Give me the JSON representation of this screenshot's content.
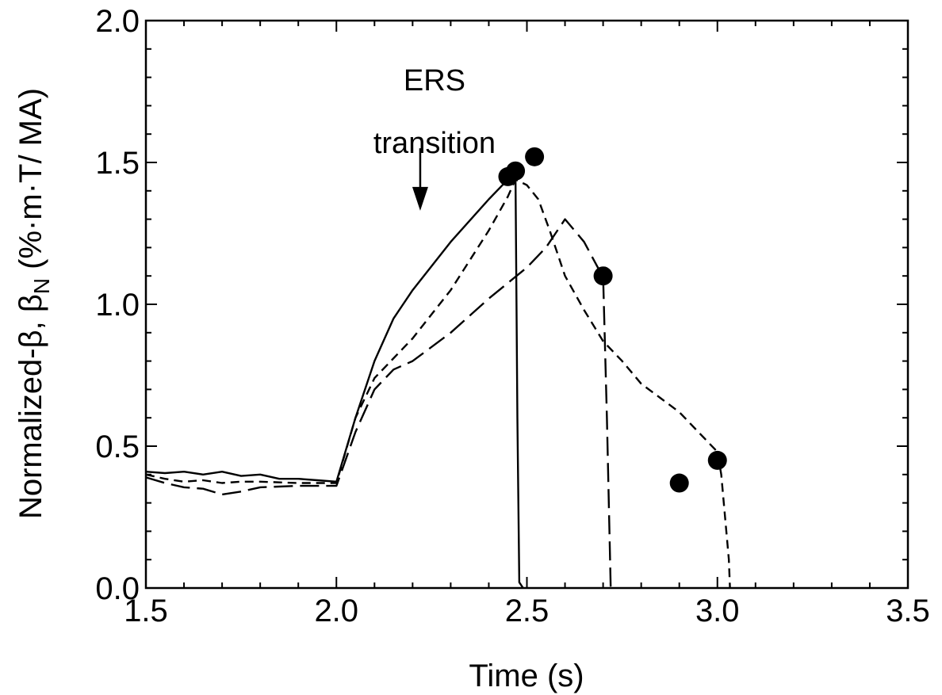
{
  "chart_data": {
    "type": "line",
    "xlabel": "Time (s)",
    "ylabel_main": "Normalized-β, β",
    "ylabel_sub": "N",
    "ylabel_tail": " (%·m·T/ MA)",
    "xlim": [
      1.5,
      3.5
    ],
    "ylim": [
      0.0,
      2.0
    ],
    "x_ticks": [
      1.5,
      2.0,
      2.5,
      3.0,
      3.5
    ],
    "x_tick_labels": [
      "1.5",
      "2.0",
      "2.5",
      "3.0",
      "3.5"
    ],
    "y_ticks": [
      0.0,
      0.5,
      1.0,
      1.5,
      2.0
    ],
    "y_tick_labels": [
      "0.0",
      "0.5",
      "1.0",
      "1.5",
      "2.0"
    ],
    "x_minor_step": 0.1,
    "y_minor_step": 0.1,
    "annotation": {
      "lines": [
        "ERS",
        "transition"
      ],
      "x": 2.22,
      "arrow_from_y": 1.55,
      "arrow_to_y": 1.33
    },
    "series": [
      {
        "style": "solid",
        "points": [
          [
            1.5,
            0.41
          ],
          [
            1.55,
            0.405
          ],
          [
            1.6,
            0.41
          ],
          [
            1.65,
            0.4
          ],
          [
            1.7,
            0.41
          ],
          [
            1.75,
            0.395
          ],
          [
            1.8,
            0.4
          ],
          [
            1.85,
            0.385
          ],
          [
            1.9,
            0.385
          ],
          [
            1.95,
            0.38
          ],
          [
            2.0,
            0.375
          ],
          [
            2.05,
            0.6
          ],
          [
            2.1,
            0.8
          ],
          [
            2.15,
            0.95
          ],
          [
            2.2,
            1.05
          ],
          [
            2.3,
            1.22
          ],
          [
            2.4,
            1.37
          ],
          [
            2.45,
            1.44
          ],
          [
            2.47,
            1.46
          ],
          [
            2.475,
            0.6
          ],
          [
            2.48,
            0.02
          ],
          [
            2.49,
            0.0
          ]
        ],
        "markers": [
          [
            2.45,
            1.45
          ],
          [
            2.47,
            1.47
          ],
          [
            2.52,
            1.52
          ]
        ]
      },
      {
        "style": "dashed",
        "points": [
          [
            1.5,
            0.4
          ],
          [
            1.55,
            0.385
          ],
          [
            1.6,
            0.375
          ],
          [
            1.65,
            0.38
          ],
          [
            1.7,
            0.37
          ],
          [
            1.75,
            0.375
          ],
          [
            1.8,
            0.375
          ],
          [
            1.9,
            0.37
          ],
          [
            2.0,
            0.37
          ],
          [
            2.05,
            0.6
          ],
          [
            2.1,
            0.74
          ],
          [
            2.2,
            0.88
          ],
          [
            2.3,
            1.05
          ],
          [
            2.4,
            1.26
          ],
          [
            2.45,
            1.38
          ],
          [
            2.47,
            1.44
          ],
          [
            2.5,
            1.42
          ],
          [
            2.53,
            1.37
          ],
          [
            2.56,
            1.26
          ],
          [
            2.6,
            1.1
          ],
          [
            2.65,
            0.98
          ],
          [
            2.7,
            0.87
          ],
          [
            2.75,
            0.8
          ],
          [
            2.8,
            0.72
          ],
          [
            2.85,
            0.67
          ],
          [
            2.9,
            0.62
          ],
          [
            2.95,
            0.55
          ],
          [
            3.0,
            0.48
          ],
          [
            3.01,
            0.4
          ],
          [
            3.02,
            0.25
          ],
          [
            3.03,
            0.1
          ],
          [
            3.033,
            0.0
          ]
        ],
        "markers": [
          [
            2.9,
            0.37
          ],
          [
            3.0,
            0.45
          ]
        ]
      },
      {
        "style": "long-dashed",
        "points": [
          [
            1.5,
            0.39
          ],
          [
            1.55,
            0.37
          ],
          [
            1.6,
            0.355
          ],
          [
            1.65,
            0.35
          ],
          [
            1.7,
            0.33
          ],
          [
            1.75,
            0.34
          ],
          [
            1.8,
            0.355
          ],
          [
            1.9,
            0.36
          ],
          [
            2.0,
            0.36
          ],
          [
            2.05,
            0.55
          ],
          [
            2.1,
            0.7
          ],
          [
            2.15,
            0.77
          ],
          [
            2.2,
            0.8
          ],
          [
            2.3,
            0.9
          ],
          [
            2.4,
            1.02
          ],
          [
            2.5,
            1.13
          ],
          [
            2.55,
            1.2
          ],
          [
            2.6,
            1.3
          ],
          [
            2.65,
            1.22
          ],
          [
            2.69,
            1.12
          ],
          [
            2.7,
            1.1
          ],
          [
            2.71,
            0.6
          ],
          [
            2.72,
            0.0
          ]
        ],
        "markers": [
          [
            2.7,
            1.1
          ]
        ]
      }
    ]
  }
}
